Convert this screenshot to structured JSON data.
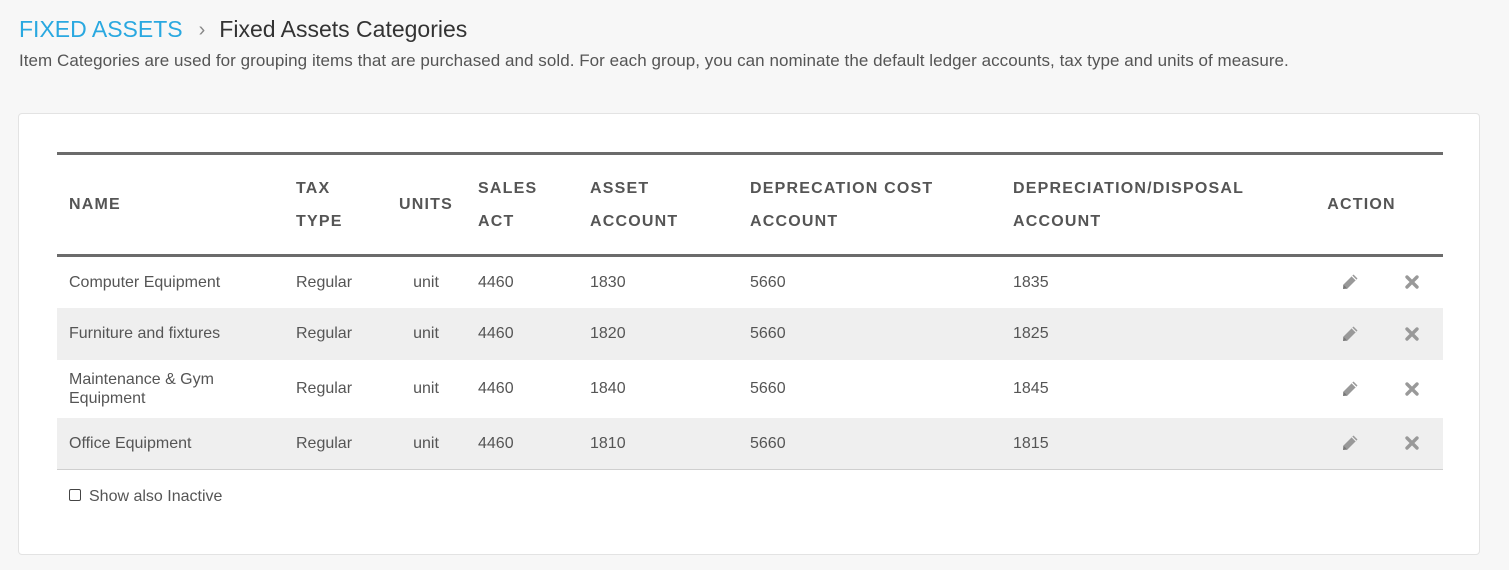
{
  "breadcrumb": {
    "parent": "FIXED ASSETS",
    "separator": "›",
    "current": "Fixed Assets Categories"
  },
  "description": "Item Categories are used for grouping items that are purchased and sold. For each group, you can nominate the default ledger accounts, tax type and units of measure.",
  "table": {
    "headers": {
      "name": [
        "NAME"
      ],
      "tax_type": [
        "TAX",
        "TYPE"
      ],
      "units": [
        "UNITS"
      ],
      "sales_act": [
        "SALES",
        "ACT"
      ],
      "asset_account": [
        "ASSET",
        "ACCOUNT"
      ],
      "deprecation_cost_account": [
        "DEPRECATION COST",
        "ACCOUNT"
      ],
      "depreciation_disposal_account": [
        "DEPRECIATION/DISPOSAL",
        "ACCOUNT"
      ],
      "action": [
        "ACTION"
      ]
    },
    "rows": [
      {
        "name": "Computer Equipment",
        "tax_type": "Regular",
        "units": "unit",
        "sales_act": "4460",
        "asset_account": "1830",
        "deprecation_cost_account": "5660",
        "depreciation_disposal_account": "1835"
      },
      {
        "name": "Furniture and fixtures",
        "tax_type": "Regular",
        "units": "unit",
        "sales_act": "4460",
        "asset_account": "1820",
        "deprecation_cost_account": "5660",
        "depreciation_disposal_account": "1825"
      },
      {
        "name": "Maintenance & Gym Equipment",
        "tax_type": "Regular",
        "units": "unit",
        "sales_act": "4460",
        "asset_account": "1840",
        "deprecation_cost_account": "5660",
        "depreciation_disposal_account": "1845"
      },
      {
        "name": "Office Equipment",
        "tax_type": "Regular",
        "units": "unit",
        "sales_act": "4460",
        "asset_account": "1810",
        "deprecation_cost_account": "5660",
        "depreciation_disposal_account": "1815"
      }
    ],
    "action_icons": {
      "edit": "pencil-icon",
      "delete": "close-x-icon"
    }
  },
  "footer": {
    "show_inactive_label": "Show also Inactive",
    "show_inactive_checked": false
  },
  "colors": {
    "link": "#29a8e0",
    "text": "#555555",
    "stripe": "#efefef",
    "rule": "#6b6b6b",
    "icon": "#999999"
  }
}
